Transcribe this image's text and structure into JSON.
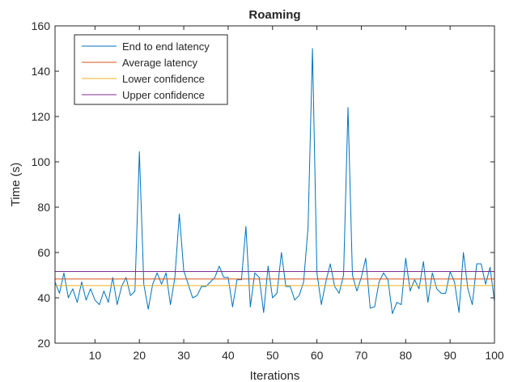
{
  "chart_data": {
    "type": "line",
    "title": "Roaming",
    "xlabel": "Iterations",
    "ylabel": "Time (s)",
    "xlim": [
      1,
      100
    ],
    "ylim": [
      20,
      160
    ],
    "xticks": [
      10,
      20,
      30,
      40,
      50,
      60,
      70,
      80,
      90,
      100
    ],
    "yticks": [
      20,
      40,
      60,
      80,
      100,
      120,
      140,
      160
    ],
    "grid": false,
    "legend_position": "top-left",
    "series": [
      {
        "name": "End to end latency",
        "color": "#0072BD",
        "x": [
          1,
          2,
          3,
          4,
          5,
          6,
          7,
          8,
          9,
          10,
          11,
          12,
          13,
          14,
          15,
          16,
          17,
          18,
          19,
          20,
          21,
          22,
          23,
          24,
          25,
          26,
          27,
          28,
          29,
          30,
          31,
          32,
          33,
          34,
          35,
          36,
          37,
          38,
          39,
          40,
          41,
          42,
          43,
          44,
          45,
          46,
          47,
          48,
          49,
          50,
          51,
          52,
          53,
          54,
          55,
          56,
          57,
          58,
          59,
          60,
          61,
          62,
          63,
          64,
          65,
          66,
          67,
          68,
          69,
          70,
          71,
          72,
          73,
          74,
          75,
          76,
          77,
          78,
          79,
          80,
          81,
          82,
          83,
          84,
          85,
          86,
          87,
          88,
          89,
          90,
          91,
          92,
          93,
          94,
          95,
          96,
          97,
          98,
          99,
          100
        ],
        "y": [
          47,
          42,
          51,
          40,
          44,
          38,
          47,
          39,
          44,
          39,
          37,
          43,
          38,
          49,
          37,
          45,
          49,
          41,
          43,
          104.5,
          46,
          35,
          46,
          51,
          46,
          51,
          37,
          49,
          77,
          52,
          46,
          40,
          41,
          45,
          45,
          47,
          49,
          54,
          49,
          49,
          36,
          48,
          48,
          71.5,
          36,
          51,
          49,
          33.5,
          54,
          40,
          42,
          60,
          45,
          45,
          39,
          41,
          47,
          71,
          150,
          51,
          37,
          47,
          55,
          45,
          42,
          50,
          124,
          50,
          43,
          49,
          57.5,
          35.5,
          36,
          47,
          51,
          48,
          33,
          38,
          37,
          57.5,
          43,
          48,
          44,
          56,
          38,
          51,
          44,
          42,
          42,
          51.5,
          47,
          33.5,
          60,
          44,
          37,
          55,
          55,
          46,
          53.5,
          38.5
        ]
      },
      {
        "name": "Average latency",
        "color": "#D95319",
        "x": [
          1,
          100
        ],
        "y": [
          48.3,
          48.3
        ]
      },
      {
        "name": "Lower confidence",
        "color": "#EDB120",
        "x": [
          1,
          100
        ],
        "y": [
          45.4,
          45.4
        ]
      },
      {
        "name": "Upper confidence",
        "color": "#7E2F8E",
        "x": [
          1,
          100
        ],
        "y": [
          51.6,
          51.6
        ]
      }
    ]
  }
}
